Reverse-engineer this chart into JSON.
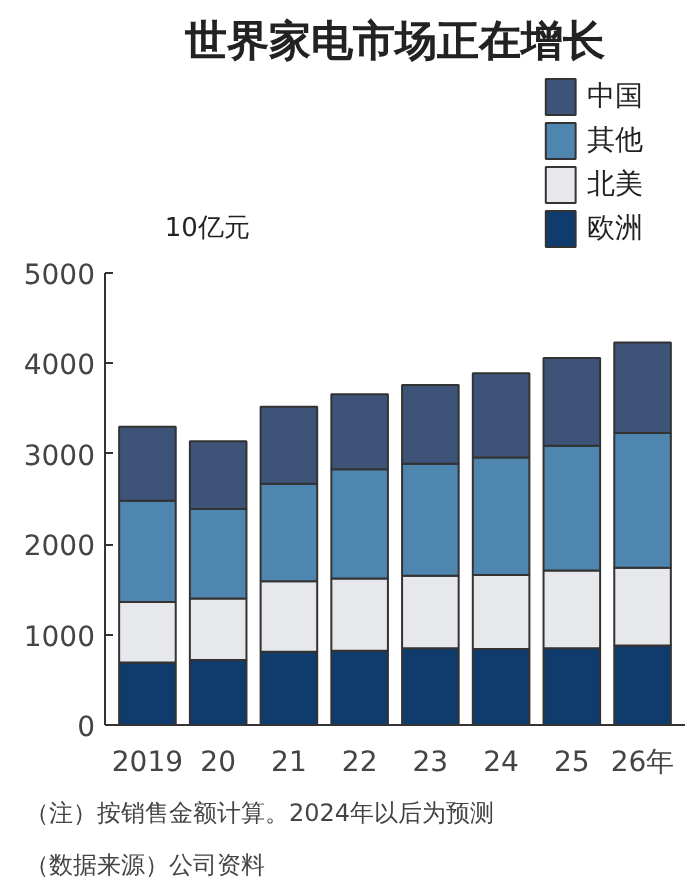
{
  "chart_data": {
    "type": "bar",
    "title": "世界家电市场正在增长",
    "ylabel": "10亿元",
    "categories": [
      "2019",
      "20",
      "21",
      "22",
      "23",
      "24",
      "25",
      "26年"
    ],
    "stacked": true,
    "ylim": [
      0,
      5000
    ],
    "yticks": [
      0,
      1000,
      2000,
      3000,
      4000,
      5000
    ],
    "grid": false,
    "legend": "top right",
    "series": [
      {
        "name": "欧洲",
        "color": "#0f3c6c",
        "values": [
          690,
          720,
          810,
          820,
          850,
          840,
          850,
          880
        ]
      },
      {
        "name": "北美",
        "color": "#e6e8ec",
        "values": [
          670,
          680,
          780,
          800,
          800,
          820,
          860,
          860
        ]
      },
      {
        "name": "其他",
        "color": "#4f86b0",
        "values": [
          1120,
          990,
          1080,
          1210,
          1240,
          1300,
          1380,
          1490
        ]
      },
      {
        "name": "中国",
        "color": "#3d5478",
        "values": [
          820,
          750,
          850,
          830,
          870,
          930,
          970,
          1000
        ]
      }
    ],
    "annotations": [
      "（注）按销售金额计算。2024年以后为预测",
      "（数据来源）公司资料"
    ]
  }
}
